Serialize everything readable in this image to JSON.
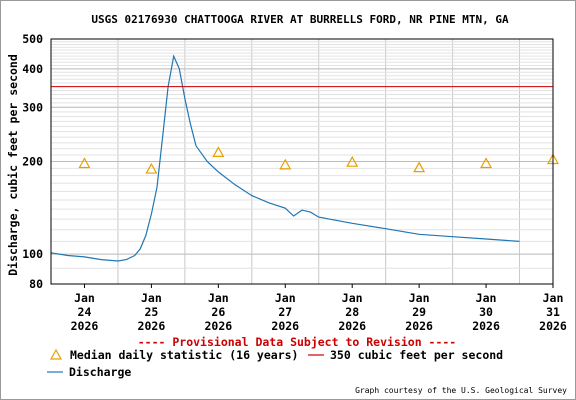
{
  "chart_data": {
    "type": "line",
    "title": "USGS 02176930 CHATTOOGA RIVER AT BURRELLS FORD, NR PINE MTN, GA",
    "ylabel": "Discharge, cubic feet per second",
    "xlabel": "",
    "y_scale": "log",
    "ylim": [
      80,
      500
    ],
    "y_ticks": [
      80,
      100,
      200,
      300,
      400,
      500
    ],
    "y_tick_labels": [
      "80",
      "100",
      "200",
      "300",
      "400",
      "500"
    ],
    "xlim": [
      "2026-01-24T00:00",
      "2026-01-31T12:00"
    ],
    "x_ticks": [
      {
        "x": "2026-01-24T12:00",
        "lines": [
          "Jan",
          "24",
          "2026"
        ]
      },
      {
        "x": "2026-01-25T12:00",
        "lines": [
          "Jan",
          "25",
          "2026"
        ]
      },
      {
        "x": "2026-01-26T12:00",
        "lines": [
          "Jan",
          "26",
          "2026"
        ]
      },
      {
        "x": "2026-01-27T12:00",
        "lines": [
          "Jan",
          "27",
          "2026"
        ]
      },
      {
        "x": "2026-01-28T12:00",
        "lines": [
          "Jan",
          "28",
          "2026"
        ]
      },
      {
        "x": "2026-01-29T12:00",
        "lines": [
          "Jan",
          "29",
          "2026"
        ]
      },
      {
        "x": "2026-01-30T12:00",
        "lines": [
          "Jan",
          "30",
          "2026"
        ]
      },
      {
        "x": "2026-01-31T12:00",
        "lines": [
          "Jan",
          "31",
          "2026"
        ]
      }
    ],
    "grid": true,
    "series": [
      {
        "name": "Discharge",
        "type": "line",
        "color": "#1f77b4",
        "x": [
          "2026-01-24T00:00",
          "2026-01-24T06:00",
          "2026-01-24T12:00",
          "2026-01-24T18:00",
          "2026-01-25T00:00",
          "2026-01-25T03:00",
          "2026-01-25T06:00",
          "2026-01-25T08:00",
          "2026-01-25T10:00",
          "2026-01-25T12:00",
          "2026-01-25T14:00",
          "2026-01-25T16:00",
          "2026-01-25T18:00",
          "2026-01-25T20:00",
          "2026-01-25T22:00",
          "2026-01-26T00:00",
          "2026-01-26T02:00",
          "2026-01-26T04:00",
          "2026-01-26T08:00",
          "2026-01-26T12:00",
          "2026-01-26T18:00",
          "2026-01-27T00:00",
          "2026-01-27T06:00",
          "2026-01-27T12:00",
          "2026-01-27T15:00",
          "2026-01-27T18:00",
          "2026-01-27T21:00",
          "2026-01-28T00:00",
          "2026-01-28T12:00",
          "2026-01-29T00:00",
          "2026-01-29T12:00",
          "2026-01-30T00:00",
          "2026-01-30T12:00",
          "2026-01-31T00:00"
        ],
        "y": [
          101,
          99,
          98,
          96,
          95,
          96,
          99,
          104,
          115,
          135,
          165,
          240,
          350,
          440,
          400,
          320,
          265,
          225,
          200,
          185,
          168,
          155,
          147,
          141,
          133,
          139,
          137,
          132,
          126,
          121,
          116,
          114,
          112,
          110
        ]
      },
      {
        "name": "Median daily statistic (16 years)",
        "type": "marker",
        "marker": "triangle",
        "color": "#e8a000",
        "x": [
          "2026-01-24T12:00",
          "2026-01-25T12:00",
          "2026-01-26T12:00",
          "2026-01-27T12:00",
          "2026-01-28T12:00",
          "2026-01-29T12:00",
          "2026-01-30T12:00",
          "2026-01-31T12:00"
        ],
        "y": [
          197,
          189,
          214,
          195,
          199,
          191,
          197,
          203
        ]
      },
      {
        "name": "350 cubic feet per second",
        "type": "hline",
        "color": "#cc0000",
        "y": 350
      }
    ],
    "notice": "---- Provisional Data Subject to Revision ----",
    "legend": [
      {
        "label": "Median daily statistic (16 years)",
        "symbol": "triangle",
        "color": "#e8a000"
      },
      {
        "label": "350 cubic feet per second",
        "symbol": "line",
        "color": "#cc0000"
      },
      {
        "label": "Discharge",
        "symbol": "line",
        "color": "#1f77b4"
      }
    ],
    "credit": "Graph courtesy of the U.S. Geological Survey"
  }
}
